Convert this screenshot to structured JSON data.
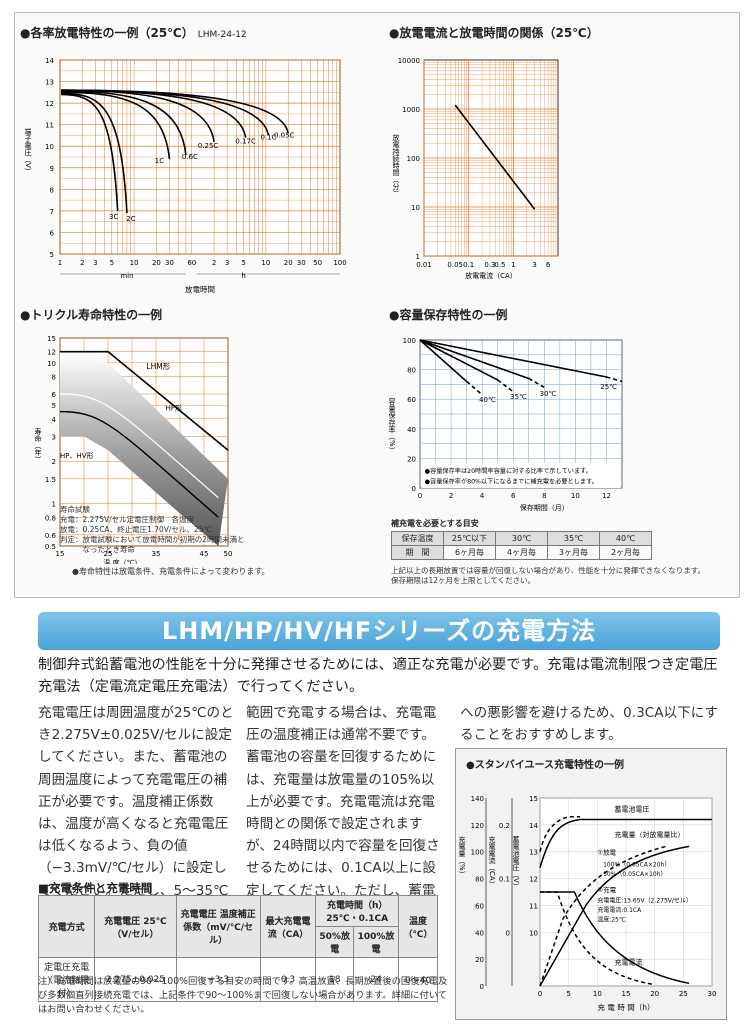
{
  "charts": {
    "discharge": {
      "title": "●各率放電特性の一例（25℃）",
      "model": "LHM-24-12",
      "ylabel": "端子電圧（V）",
      "xlabel": "放電時間",
      "min_label": "min",
      "h_label": "h",
      "yticks": [
        "14",
        "13",
        "12",
        "11",
        "10",
        "9",
        "8",
        "7",
        "6",
        "5"
      ],
      "xticks_min": [
        "1",
        "2",
        "3",
        "5",
        "10",
        "20",
        "30",
        "60"
      ],
      "xticks_h": [
        "2",
        "3",
        "5",
        "10",
        "20",
        "30",
        "50",
        "100"
      ],
      "curve_labels": [
        "3C",
        "2C",
        "1C",
        "0.6C",
        "0.25C",
        "0.17C",
        "0.1C",
        "0.05C"
      ]
    },
    "current_time": {
      "title": "●放電電流と放電時間の関係（25℃）",
      "ylabel": "放電持続時間（分）",
      "xlabel": "放電電流（CA）",
      "yticks": [
        "10000",
        "1000",
        "100",
        "10",
        "1"
      ],
      "xticks": [
        "0.01",
        "0.05",
        "0.1",
        "0.3",
        "0.5",
        "1",
        "3",
        "6"
      ]
    },
    "trickle": {
      "title": "●トリクル寿命特性の一例",
      "ylabel": "寿命（年）",
      "xlabel": "温 度（℃）",
      "yticks": [
        "15",
        "12",
        "10",
        "8",
        "6",
        "5",
        "4",
        "3",
        "2",
        "1.5",
        "1",
        "0.8",
        "0.6",
        "0.5"
      ],
      "xticks": [
        "15",
        "25",
        "35",
        "45",
        "50"
      ],
      "series_labels": [
        "LHM形",
        "HF形",
        "HP、HV形"
      ],
      "conditions": [
        "寿命試験",
        "充電：2.275V/セル定電圧制御　各温度",
        "放電：0.25CA、終止電圧1.70V/セル、25℃",
        "判定：放電試験において放電時間が初期の2時間未満と",
        "　　　なったとき寿命"
      ],
      "footnote": "●寿命特性は放電条件、充電条件によって変わります。"
    },
    "retention": {
      "title": "●容量保存特性の一例",
      "ylabel": "容量保存率（%）",
      "xlabel": "保存期間（月）",
      "yticks": [
        "100",
        "80",
        "60",
        "40",
        "20",
        "0"
      ],
      "xticks": [
        "0",
        "2",
        "4",
        "6",
        "8",
        "10",
        "12"
      ],
      "series_labels": [
        "40℃",
        "35℃",
        "30℃",
        "25℃"
      ],
      "notes": [
        "●容量保存率は20時間率容量に対する比率で示しています。",
        "●容量保存率が80%以下になるまでに補充電を必要とします。"
      ],
      "table_title": "補充電を必要とする目安",
      "table_head": [
        "保存温度",
        "25℃以下",
        "30℃",
        "35℃",
        "40℃"
      ],
      "table_row": [
        "期　間",
        "6ヶ月毎",
        "4ヶ月毎",
        "3ヶ月毎",
        "2ヶ月毎"
      ],
      "footnote1": "上記以上の長期放置では容量が回復しない場合があり、性能を十分に発揮できなくなります。",
      "footnote2": "保存期限は12ヶ月を上限としてください。"
    }
  },
  "banner": "LHM/HP/HV/HFシリーズの充電方法",
  "intro": "制御弁式鉛蓄電池の性能を十分に発揮させるためには、適正な充電が必要です。充電は電流制限つき定電圧充電法（定電流定電圧充電法）で行ってください。",
  "col1": "充電電圧は周囲温度が25℃のとき2.275V±0.025V/セルに設定してください。また、蓄電池の周囲温度によって充電電圧の補正が必要です。温度補正係数は、温度が高くなると充電電圧は低くなるよう、負の値（−3.3mV/℃/セル）に設定してください。ただし、5〜35℃（平均25℃）の温度",
  "col2": "範囲で充電する場合は、充電電圧の温度補正は通常不要です。蓄電池の容量を回復するためには、充電量は放電量の105%以上が必要です。充電電流は充電時間との関係で設定されますが、24時間以内で容量を回復させるためには、0.1CA以上に設定してください。ただし、蓄電池の故障や寿命",
  "col3": "への悪影響を避けるため、0.3CA以下にすることをおすすめします。",
  "charge_table": {
    "title": "■充電条件と充電時間",
    "h_method": "充電方式",
    "h_voltage": "充電電圧 25℃（V/セル）",
    "h_coef": "充電電圧 温度補正係数（mV/℃/セル）",
    "h_maxcur": "最大充電電流（CA）",
    "h_time": "充電時間（h）25℃・0.1CA",
    "h_50": "50%放電",
    "h_100": "100%放電",
    "h_temp": "温度（℃）",
    "row_method": "定電圧充電（電流制限付）",
    "row_voltage": "2.275±0.025",
    "row_coef": "−3.3",
    "row_maxcur": "0.3",
    "row_50": "18",
    "row_100": "24",
    "row_temp": "0〜40"
  },
  "note": "注）充電時間は放電量の90〜100%回復する目安の時間です。高温放置、長期放置後の回復充電及び多数個直列接続充電では、上記条件で90〜100%まで回復しない場合があります。詳細に付いてはお問い合わせください。",
  "standby": {
    "title": "●スタンバイユース充電特性の一例",
    "label_voltage": "蓄電池電圧",
    "label_amount": "充電量（対放電量比）",
    "label_current": "充電電流",
    "legend_discharge": "①放電",
    "legend_100": "100%（0.05CA×20h）",
    "legend_50": "50%（0.05CA×10h）",
    "legend_charge": "②充電",
    "legend_cv": "充電電圧:13.65V（2.275V/セル）",
    "legend_cc": "充電電流:0.1CA",
    "legend_temp": "温度:25℃",
    "xlabel": "充 電 時 間（h）",
    "axis1_label": "充電量（%）",
    "axis2_label": "充電電流（CA）",
    "axis3_label": "蓄電池電圧（V）",
    "ticks_pct": [
      "140",
      "120",
      "100",
      "80",
      "60",
      "40",
      "20",
      "0"
    ],
    "ticks_ca": [
      "0.2",
      "",
      "0.1",
      "",
      "0"
    ],
    "ticks_v": [
      "15",
      "14",
      "13",
      "12",
      "11",
      "10"
    ],
    "xticks": [
      "0",
      "5",
      "10",
      "15",
      "20",
      "25",
      "30"
    ]
  },
  "colors": {
    "banner": "#4aa3d8",
    "grid": "#e87a2a",
    "retention_grid": "#7a9ec9"
  }
}
